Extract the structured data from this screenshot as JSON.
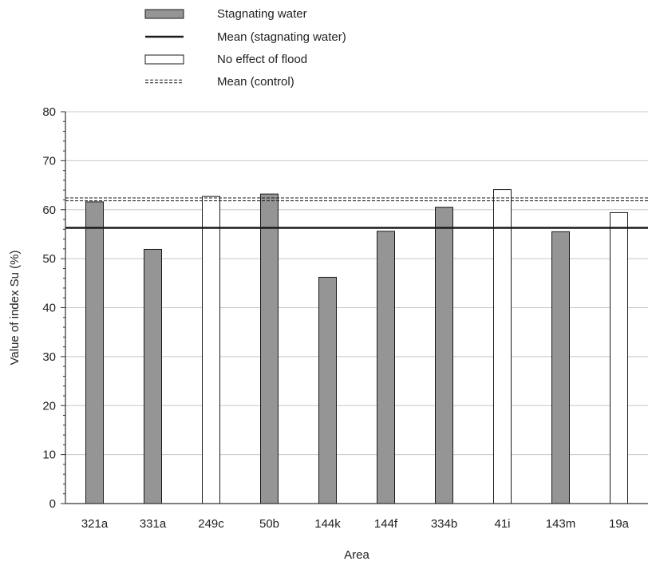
{
  "chart_data": {
    "type": "bar",
    "categories": [
      "321a",
      "331a",
      "249c",
      "50b",
      "144k",
      "144f",
      "334b",
      "41i",
      "143m",
      "19a"
    ],
    "values": [
      61.6,
      51.9,
      62.7,
      63.2,
      46.2,
      55.6,
      60.5,
      64.1,
      55.5,
      59.4
    ],
    "groups": [
      "stagnating",
      "stagnating",
      "control",
      "stagnating",
      "stagnating",
      "stagnating",
      "stagnating",
      "control",
      "stagnating",
      "control"
    ],
    "mean_stagnating": 56.3,
    "mean_control": 62.1,
    "xlabel": "Area",
    "ylabel": "Value of index Su (%)",
    "ylim": [
      0,
      80
    ],
    "yticks": [
      0,
      10,
      20,
      30,
      40,
      50,
      60,
      70,
      80
    ],
    "grid": true,
    "legend_position": "top-center",
    "legend": [
      {
        "key": "stagnating-bar",
        "label": "Stagnating water"
      },
      {
        "key": "mean-stagnating-line",
        "label": "Mean (stagnating water)"
      },
      {
        "key": "control-bar",
        "label": "No effect of flood"
      },
      {
        "key": "mean-control-line",
        "label": "Mean (control)"
      }
    ],
    "colors": {
      "stagnating_fill": "#959595",
      "control_fill": "#ffffff",
      "bar_stroke": "#1a1a1a",
      "mean_line": "#1a1a1a",
      "grid": "#c8c8c8",
      "axis": "#333333"
    }
  }
}
